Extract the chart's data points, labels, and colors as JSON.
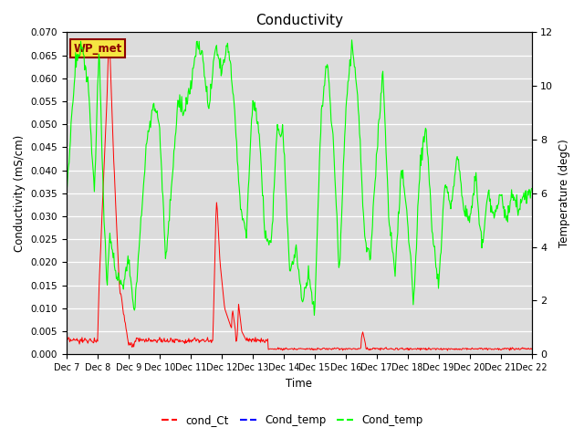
{
  "title": "Conductivity",
  "xlabel": "Time",
  "ylabel_left": "Conductivity (mS/cm)",
  "ylabel_right": "Temperature (degC)",
  "ylim_left": [
    0,
    0.07
  ],
  "ylim_right": [
    0,
    12
  ],
  "yticks_left": [
    0.0,
    0.005,
    0.01,
    0.015,
    0.02,
    0.025,
    0.03,
    0.035,
    0.04,
    0.045,
    0.05,
    0.055,
    0.06,
    0.065,
    0.07
  ],
  "yticks_right": [
    0,
    2,
    4,
    6,
    8,
    10,
    12
  ],
  "x_tick_labels": [
    "Dec 7",
    "Dec 8",
    "Dec 9",
    "Dec 10",
    "Dec 11",
    "Dec 12",
    "Dec 13",
    "Dec 14",
    "Dec 15",
    "Dec 16",
    "Dec 17",
    "Dec 18",
    "Dec 19",
    "Dec 20",
    "Dec 21",
    "Dec 22"
  ],
  "bg_color": "#dcdcdc",
  "legend_label_red": "cond_Ct",
  "legend_label_blue": "Cond_temp",
  "legend_label_green": "Cond_temp",
  "annotation_text": "WP_met",
  "annotation_bg": "#f5e642",
  "annotation_border": "#8B0000"
}
